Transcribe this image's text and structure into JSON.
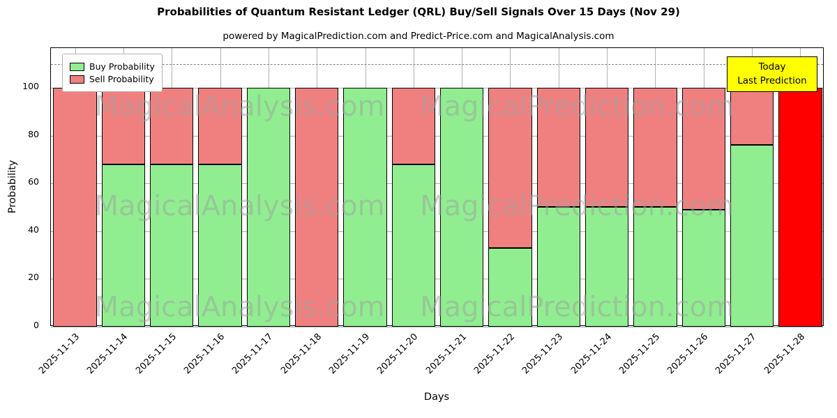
{
  "title": "Probabilities of Quantum Resistant Ledger (QRL) Buy/Sell Signals Over 15 Days (Nov 29)",
  "subtitle": "powered by MagicalPrediction.com and Predict-Price.com and MagicalAnalysis.com",
  "legend": {
    "items": [
      {
        "label": "Buy Probability",
        "color": "#90EE90"
      },
      {
        "label": "Sell Probability",
        "color": "#F08080"
      }
    ]
  },
  "annotation": {
    "line1": "Today",
    "line2": "Last Prediction"
  },
  "axes": {
    "xlabel": "Days",
    "ylabel": "Probability",
    "yticks": [
      0,
      20,
      40,
      60,
      80,
      100
    ],
    "ymax": 116.6,
    "dashed_line_y": 110
  },
  "watermarks": [
    "MagicalAnalysis.com",
    "MagicalPrediction.com"
  ],
  "colors": {
    "buy": "#90EE90",
    "sell": "#F08080",
    "today": "#FF0000",
    "grid": "#b0b0b0",
    "dashed": "#7f7f7f",
    "annotation_bg": "#ffff00"
  },
  "chart_data": {
    "type": "bar",
    "stacked": true,
    "title": "Probabilities of Quantum Resistant Ledger (QRL) Buy/Sell Signals Over 15 Days (Nov 29)",
    "xlabel": "Days",
    "ylabel": "Probability",
    "ylim": [
      0,
      116.6
    ],
    "grid": true,
    "legend_position": "upper-left",
    "categories": [
      "2025-11-13",
      "2025-11-14",
      "2025-11-15",
      "2025-11-16",
      "2025-11-17",
      "2025-11-18",
      "2025-11-19",
      "2025-11-20",
      "2025-11-21",
      "2025-11-22",
      "2025-11-23",
      "2025-11-24",
      "2025-11-25",
      "2025-11-26",
      "2025-11-27",
      "2025-11-28"
    ],
    "series": [
      {
        "name": "Buy Probability",
        "color": "#90EE90",
        "values": [
          0,
          68,
          68,
          68,
          100,
          0,
          100,
          68,
          100,
          33,
          50,
          50,
          50,
          49,
          76,
          0
        ]
      },
      {
        "name": "Sell Probability",
        "color": "#F08080",
        "values": [
          100,
          32,
          32,
          32,
          0,
          100,
          0,
          32,
          0,
          67,
          50,
          50,
          50,
          51,
          24,
          0
        ]
      },
      {
        "name": "Today Last Prediction",
        "color": "#FF0000",
        "values": [
          0,
          0,
          0,
          0,
          0,
          0,
          0,
          0,
          0,
          0,
          0,
          0,
          0,
          0,
          0,
          100
        ]
      }
    ]
  }
}
